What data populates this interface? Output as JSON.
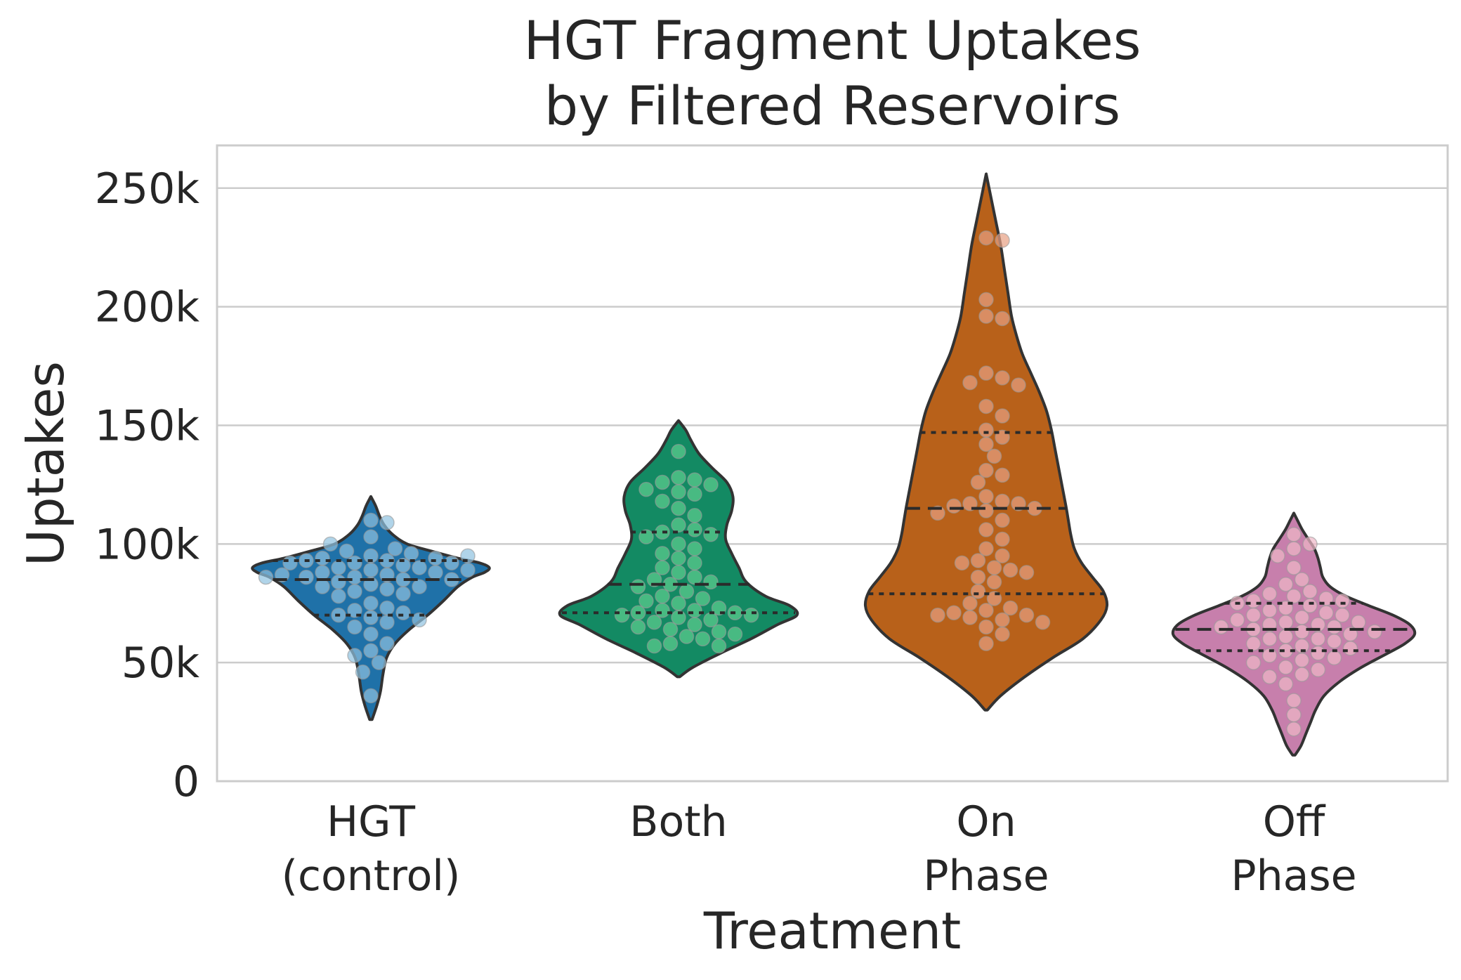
{
  "chart_data": {
    "type": "violin",
    "title": [
      "HGT Fragment Uptakes",
      "by Filtered Reservoirs"
    ],
    "xlabel": "Treatment",
    "ylabel": "Uptakes",
    "ylim": [
      0,
      268000
    ],
    "yticks": [
      {
        "value": 0,
        "label": "0"
      },
      {
        "value": 50000,
        "label": "50k"
      },
      {
        "value": 100000,
        "label": "100k"
      },
      {
        "value": 150000,
        "label": "150k"
      },
      {
        "value": 200000,
        "label": "200k"
      },
      {
        "value": 250000,
        "label": "250k"
      }
    ],
    "grid": "horizontal",
    "categories": [
      {
        "label": [
          "HGT",
          "(control)"
        ],
        "color": "#1f71a8",
        "point_color": "#8ec2e0",
        "min": 26000,
        "max": 120000,
        "q1": 70000,
        "median": 85000,
        "q3": 93000,
        "profile": [
          [
            26000,
            0.01
          ],
          [
            32000,
            0.05
          ],
          [
            38000,
            0.08
          ],
          [
            45000,
            0.1
          ],
          [
            52000,
            0.13
          ],
          [
            58000,
            0.2
          ],
          [
            64000,
            0.32
          ],
          [
            70000,
            0.47
          ],
          [
            76000,
            0.6
          ],
          [
            82000,
            0.72
          ],
          [
            86000,
            0.84
          ],
          [
            88000,
            0.94
          ],
          [
            90000,
            0.98
          ],
          [
            92000,
            0.9
          ],
          [
            94000,
            0.72
          ],
          [
            97000,
            0.5
          ],
          [
            100000,
            0.3
          ],
          [
            104000,
            0.18
          ],
          [
            108000,
            0.11
          ],
          [
            112000,
            0.07
          ],
          [
            116000,
            0.04
          ],
          [
            120000,
            0.0
          ]
        ],
        "points": [
          95000,
          93000,
          92000,
          91000,
          90000,
          90000,
          89000,
          88000,
          88000,
          87000,
          86000,
          86000,
          85000,
          85000,
          84000,
          83000,
          82000,
          82000,
          81000,
          80000,
          79000,
          78000,
          97000,
          96000,
          94000,
          93000,
          92000,
          98000,
          103000,
          110000,
          109000,
          100000,
          75000,
          73000,
          72000,
          71000,
          70000,
          69000,
          68000,
          67000,
          65000,
          62000,
          58000,
          55000,
          53000,
          50000,
          46000,
          36000,
          92000,
          94000,
          95000,
          89000,
          87000,
          86000
        ]
      },
      {
        "label": [
          "Both"
        ],
        "color": "#138a63",
        "point_color": "#5fcf90",
        "min": 44000,
        "max": 152000,
        "q1": 71000,
        "median": 83000,
        "q3": 105000,
        "profile": [
          [
            44000,
            0.01
          ],
          [
            48000,
            0.12
          ],
          [
            54000,
            0.35
          ],
          [
            60000,
            0.6
          ],
          [
            66000,
            0.82
          ],
          [
            70000,
            0.98
          ],
          [
            74000,
            0.92
          ],
          [
            78000,
            0.72
          ],
          [
            84000,
            0.56
          ],
          [
            90000,
            0.5
          ],
          [
            96000,
            0.44
          ],
          [
            102000,
            0.39
          ],
          [
            108000,
            0.4
          ],
          [
            114000,
            0.44
          ],
          [
            120000,
            0.45
          ],
          [
            126000,
            0.4
          ],
          [
            132000,
            0.28
          ],
          [
            138000,
            0.17
          ],
          [
            144000,
            0.1
          ],
          [
            148000,
            0.06
          ],
          [
            152000,
            0.0
          ]
        ],
        "points": [
          139000,
          128000,
          127000,
          126000,
          125000,
          123000,
          122000,
          121000,
          118000,
          115000,
          112000,
          108000,
          106000,
          105000,
          104000,
          103000,
          100000,
          98000,
          96000,
          94000,
          92000,
          90000,
          88000,
          86000,
          85000,
          84000,
          83000,
          82000,
          80000,
          78000,
          77000,
          76000,
          75000,
          73000,
          72000,
          72000,
          71000,
          71000,
          70000,
          70000,
          69000,
          68000,
          67000,
          66000,
          65000,
          64000,
          63000,
          62000,
          61000,
          60000,
          58000,
          57000,
          57000
        ]
      },
      {
        "label": [
          "On",
          "Phase"
        ],
        "color": "#b8611a",
        "point_color": "#e7a083",
        "min": 30000,
        "max": 256000,
        "q1": 79000,
        "median": 115000,
        "q3": 147000,
        "profile": [
          [
            30000,
            0.01
          ],
          [
            36000,
            0.12
          ],
          [
            44000,
            0.32
          ],
          [
            52000,
            0.55
          ],
          [
            60000,
            0.8
          ],
          [
            68000,
            0.95
          ],
          [
            74000,
            1.0
          ],
          [
            80000,
            0.97
          ],
          [
            86000,
            0.88
          ],
          [
            92000,
            0.79
          ],
          [
            98000,
            0.73
          ],
          [
            104000,
            0.7
          ],
          [
            110000,
            0.68
          ],
          [
            116000,
            0.66
          ],
          [
            124000,
            0.63
          ],
          [
            132000,
            0.6
          ],
          [
            140000,
            0.57
          ],
          [
            148000,
            0.54
          ],
          [
            156000,
            0.5
          ],
          [
            164000,
            0.44
          ],
          [
            172000,
            0.37
          ],
          [
            180000,
            0.3
          ],
          [
            188000,
            0.25
          ],
          [
            196000,
            0.21
          ],
          [
            206000,
            0.18
          ],
          [
            216000,
            0.15
          ],
          [
            226000,
            0.12
          ],
          [
            236000,
            0.08
          ],
          [
            246000,
            0.04
          ],
          [
            256000,
            0.0
          ]
        ],
        "points": [
          229000,
          228000,
          203000,
          196000,
          195000,
          172000,
          170000,
          168000,
          167000,
          158000,
          154000,
          148000,
          145000,
          142000,
          137000,
          131000,
          129000,
          126000,
          120000,
          118000,
          117000,
          117000,
          116000,
          115000,
          114000,
          113000,
          110000,
          106000,
          102000,
          98000,
          95000,
          93000,
          92000,
          90000,
          89000,
          88000,
          86000,
          84000,
          80000,
          77000,
          75000,
          73000,
          72000,
          71000,
          70000,
          70000,
          69000,
          68000,
          67000,
          65000,
          62000,
          58000
        ]
      },
      {
        "label": [
          "Off",
          "Phase"
        ],
        "color": "#c77fac",
        "point_color": "#f0b8c8",
        "min": 11000,
        "max": 113000,
        "q1": 55000,
        "median": 64000,
        "q3": 75000,
        "profile": [
          [
            11000,
            0.01
          ],
          [
            15000,
            0.06
          ],
          [
            20000,
            0.1
          ],
          [
            25000,
            0.14
          ],
          [
            30000,
            0.18
          ],
          [
            36000,
            0.25
          ],
          [
            42000,
            0.38
          ],
          [
            48000,
            0.56
          ],
          [
            54000,
            0.78
          ],
          [
            58000,
            0.92
          ],
          [
            62000,
            1.0
          ],
          [
            66000,
            0.96
          ],
          [
            70000,
            0.82
          ],
          [
            74000,
            0.62
          ],
          [
            78000,
            0.43
          ],
          [
            82000,
            0.3
          ],
          [
            86000,
            0.24
          ],
          [
            90000,
            0.22
          ],
          [
            94000,
            0.2
          ],
          [
            98000,
            0.17
          ],
          [
            102000,
            0.12
          ],
          [
            106000,
            0.07
          ],
          [
            110000,
            0.03
          ],
          [
            113000,
            0.0
          ]
        ],
        "points": [
          104000,
          100000,
          98000,
          95000,
          90000,
          85000,
          83000,
          80000,
          79000,
          78000,
          77000,
          76000,
          76000,
          75000,
          74000,
          73000,
          72000,
          71000,
          70000,
          70000,
          69000,
          68000,
          67000,
          67000,
          66000,
          66000,
          65000,
          65000,
          64000,
          63000,
          63000,
          62000,
          61000,
          60000,
          60000,
          59000,
          58000,
          57000,
          56000,
          55000,
          54000,
          53000,
          52000,
          51000,
          50000,
          48000,
          47000,
          45000,
          44000,
          41000,
          34000,
          28000,
          22000
        ]
      }
    ]
  }
}
